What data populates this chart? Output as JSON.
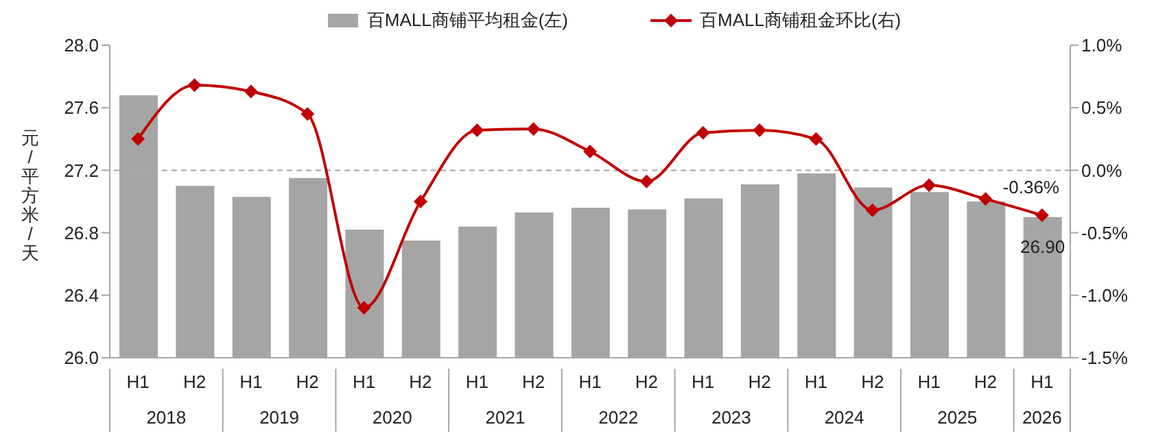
{
  "chart_data": {
    "type": "bar",
    "ylabel": "元/平方米/天",
    "categories": [
      "H1",
      "H2",
      "H1",
      "H2",
      "H1",
      "H2",
      "H1",
      "H2",
      "H1",
      "H2",
      "H1",
      "H2",
      "H1",
      "H2",
      "H1",
      "H2",
      "H1"
    ],
    "annotations": [
      "2018",
      "2019",
      "2020",
      "2021",
      "2022",
      "2023",
      "2024",
      "2025",
      "2026"
    ],
    "series": [
      {
        "name": "百MALL商铺平均租金(左)",
        "color": "#a5a5a5",
        "values": [
          27.68,
          27.1,
          27.03,
          27.15,
          26.82,
          26.75,
          26.84,
          26.93,
          26.96,
          26.95,
          27.02,
          27.11,
          27.18,
          27.09,
          27.06,
          27.0,
          26.9
        ],
        "value_labels": [
          null,
          null,
          null,
          null,
          null,
          null,
          null,
          null,
          null,
          null,
          null,
          null,
          null,
          null,
          null,
          null,
          "26.90"
        ]
      },
      {
        "name": "百MALL商铺租金环比(右)",
        "type": "line",
        "axis": "y2",
        "color": "#c00000",
        "marker": "diamond",
        "values": [
          0.25,
          0.68,
          0.63,
          0.45,
          -1.1,
          -0.25,
          0.32,
          0.33,
          0.15,
          -0.09,
          0.3,
          0.32,
          0.25,
          -0.32,
          -0.12,
          -0.23,
          -0.36
        ],
        "value_labels": [
          null,
          null,
          null,
          null,
          null,
          null,
          null,
          null,
          null,
          null,
          null,
          null,
          null,
          null,
          null,
          null,
          "-0.36%"
        ]
      }
    ],
    "ylim": [
      26,
      28
    ],
    "yticks": [
      {
        "value": 26,
        "label": "26.0"
      },
      {
        "value": 26.4,
        "label": "26.4"
      },
      {
        "value": 26.8,
        "label": "26.8"
      },
      {
        "value": 27.2,
        "label": "27.2"
      },
      {
        "value": 27.6,
        "label": "27.6"
      },
      {
        "value": 28,
        "label": "28.0"
      }
    ],
    "y2lim": [
      -1.5,
      1
    ],
    "y2ticks": [
      {
        "value": -1.5,
        "label": "-1.5%"
      },
      {
        "value": -1,
        "label": "-1.0%"
      },
      {
        "value": -0.5,
        "label": "-0.5%"
      },
      {
        "value": 0,
        "label": "0.0%"
      },
      {
        "value": 0.5,
        "label": "0.5%"
      },
      {
        "value": 1,
        "label": "1.0%"
      }
    ],
    "ref_lines": [
      {
        "axis": "y2",
        "value": 0,
        "color": "#a6a6a6",
        "line_style": "dashed"
      }
    ],
    "legend": "top",
    "grid": false
  }
}
